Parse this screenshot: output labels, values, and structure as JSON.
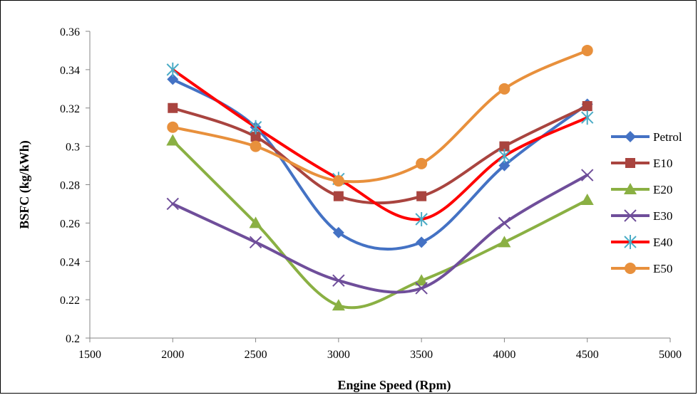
{
  "chart_data": {
    "type": "line",
    "xlabel": "Engine Speed (Rpm)",
    "ylabel": "BSFC (kg/kWh)",
    "xlim": [
      1500,
      5000
    ],
    "ylim": [
      0.2,
      0.36
    ],
    "x_ticks": [
      "1500",
      "2000",
      "2500",
      "3000",
      "3500",
      "4000",
      "4500",
      "5000"
    ],
    "y_ticks": [
      "0.2",
      "0.22",
      "0.24",
      "0.26",
      "0.28",
      "0.3",
      "0.32",
      "0.34",
      "0.36"
    ],
    "x": [
      2000,
      2500,
      3000,
      3500,
      4000,
      4500
    ],
    "grid": false,
    "smooth": true,
    "legend_position": "right",
    "series": [
      {
        "name": "Petrol",
        "values": [
          0.335,
          0.31,
          0.255,
          0.25,
          0.29,
          0.322
        ],
        "color": "#4472C4",
        "marker": "diamond"
      },
      {
        "name": "E10",
        "values": [
          0.32,
          0.305,
          0.274,
          0.274,
          0.3,
          0.321
        ],
        "color": "#A9443F",
        "marker": "square"
      },
      {
        "name": "E20",
        "values": [
          0.303,
          0.26,
          0.217,
          0.23,
          0.25,
          0.272
        ],
        "color": "#8AB043",
        "marker": "triangle"
      },
      {
        "name": "E30",
        "values": [
          0.27,
          0.25,
          0.23,
          0.226,
          0.26,
          0.285
        ],
        "color": "#6F4E9A",
        "marker": "x"
      },
      {
        "name": "E40",
        "values": [
          0.34,
          0.31,
          0.283,
          0.262,
          0.295,
          0.315
        ],
        "color": "#FF0000",
        "marker": "asterisk"
      },
      {
        "name": "E50",
        "values": [
          0.31,
          0.3,
          0.282,
          0.291,
          0.33,
          0.35
        ],
        "color": "#E8903C",
        "marker": "circle"
      }
    ]
  }
}
